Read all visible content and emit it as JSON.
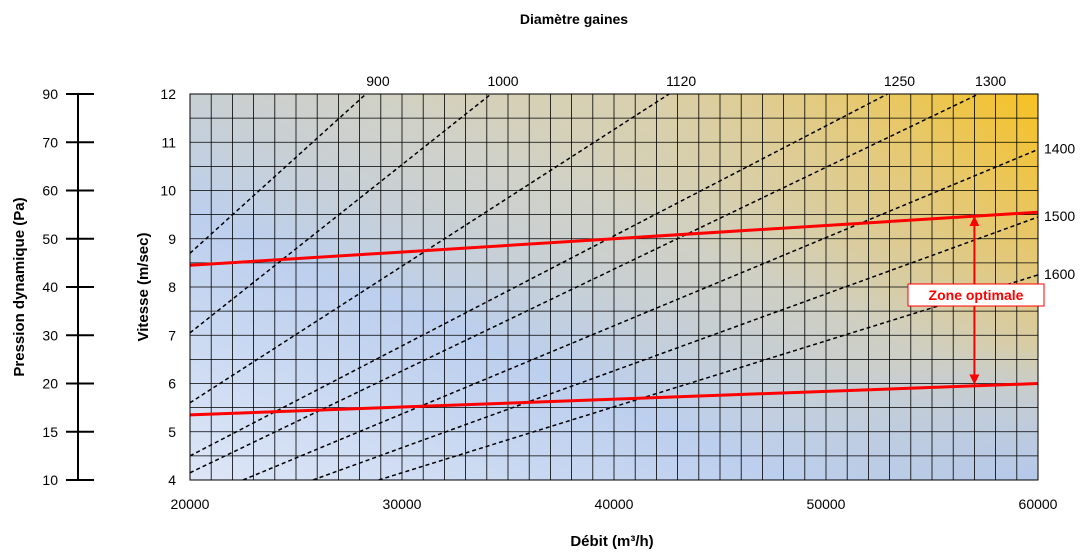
{
  "chart_data": {
    "type": "line",
    "title": "Diamètre gaines",
    "xlabel": "Débit (m³/h)",
    "ylabel": "Vitesse (m/sec)",
    "ylabel_left": "Pression dynamique (Pa)",
    "xlim": [
      20000,
      60000
    ],
    "ylim": [
      4,
      12
    ],
    "x_ticks": [
      "20000",
      "30000",
      "40000",
      "50000",
      "60000"
    ],
    "y_ticks": [
      "4",
      "5",
      "6",
      "7",
      "8",
      "9",
      "10",
      "11",
      "12"
    ],
    "pressure_ticks": [
      {
        "label": "10",
        "v": 4
      },
      {
        "label": "15",
        "v": 5
      },
      {
        "label": "20",
        "v": 6
      },
      {
        "label": "30",
        "v": 7
      },
      {
        "label": "40",
        "v": 8
      },
      {
        "label": "50",
        "v": 9
      },
      {
        "label": "60",
        "v": 10
      },
      {
        "label": "70",
        "v": 11
      },
      {
        "label": "90",
        "v": 12
      }
    ],
    "grid": true,
    "background": "gradient blue (bottom-left) to orange (top-right)",
    "duct_diameters": [
      {
        "label": "900",
        "points": [
          [
            20000,
            8.7
          ],
          [
            28300,
            12
          ]
        ]
      },
      {
        "label": "1000",
        "points": [
          [
            20000,
            7.05
          ],
          [
            34200,
            12
          ]
        ]
      },
      {
        "label": "1120",
        "points": [
          [
            20000,
            5.6
          ],
          [
            42600,
            12
          ]
        ]
      },
      {
        "label": "1250",
        "points": [
          [
            20000,
            4.5
          ],
          [
            52900,
            12
          ]
        ]
      },
      {
        "label": "1300",
        "points": [
          [
            20000,
            4.15
          ],
          [
            57200,
            12
          ]
        ]
      },
      {
        "label": "1400",
        "points": [
          [
            22500,
            4.0
          ],
          [
            60000,
            10.85
          ]
        ]
      },
      {
        "label": "1500",
        "points": [
          [
            25800,
            4.0
          ],
          [
            60000,
            9.45
          ]
        ]
      },
      {
        "label": "1600",
        "points": [
          [
            28900,
            4.0
          ],
          [
            60000,
            8.25
          ]
        ]
      }
    ],
    "limits": [
      {
        "name": "upper",
        "points": [
          [
            20000,
            8.45
          ],
          [
            60000,
            9.55
          ]
        ]
      },
      {
        "name": "lower",
        "points": [
          [
            20000,
            5.35
          ],
          [
            60000,
            6.0
          ]
        ]
      }
    ],
    "annotation": {
      "text": "Zone optimale",
      "x": 57000,
      "y_from": 6.0,
      "y_to": 9.45
    },
    "colors": {
      "dashed": "#000000",
      "limit": "#ff0000",
      "box": "#ff0000",
      "grad_blue": "#b9cdee",
      "grad_orange": "#f9be10"
    }
  }
}
